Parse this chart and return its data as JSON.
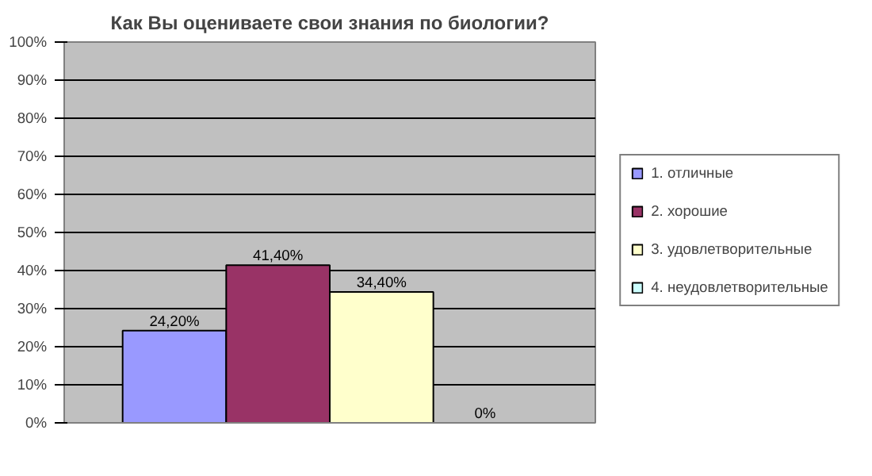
{
  "chart_data": {
    "type": "bar",
    "title": "Как Вы оцениваете свои знания по биологии?",
    "categories": [
      null
    ],
    "series": [
      {
        "name": "1. отличные",
        "color": "#9999ff",
        "values": [
          24.2
        ],
        "value_labels": [
          "24,20%"
        ]
      },
      {
        "name": "2. хорошие",
        "color": "#993366",
        "values": [
          41.4
        ],
        "value_labels": [
          "41,40%"
        ]
      },
      {
        "name": "3. удовлетворительные",
        "color": "#ffffcc",
        "values": [
          34.4
        ],
        "value_labels": [
          "34,40%"
        ]
      },
      {
        "name": "4. неудовлетворительные",
        "color": "#ccffff",
        "values": [
          0
        ],
        "value_labels": [
          "0%"
        ]
      }
    ],
    "ylim": [
      0,
      100
    ],
    "yticks": [
      {
        "value": 0,
        "label": "0%"
      },
      {
        "value": 10,
        "label": "10%"
      },
      {
        "value": 20,
        "label": "20%"
      },
      {
        "value": 30,
        "label": "30%"
      },
      {
        "value": 40,
        "label": "40%"
      },
      {
        "value": 50,
        "label": "50%"
      },
      {
        "value": 60,
        "label": "60%"
      },
      {
        "value": 70,
        "label": "70%"
      },
      {
        "value": 80,
        "label": "80%"
      },
      {
        "value": 90,
        "label": "90%"
      },
      {
        "value": 100,
        "label": "100%"
      }
    ],
    "grid": "y",
    "legend": "right",
    "tick_labels": "y"
  }
}
